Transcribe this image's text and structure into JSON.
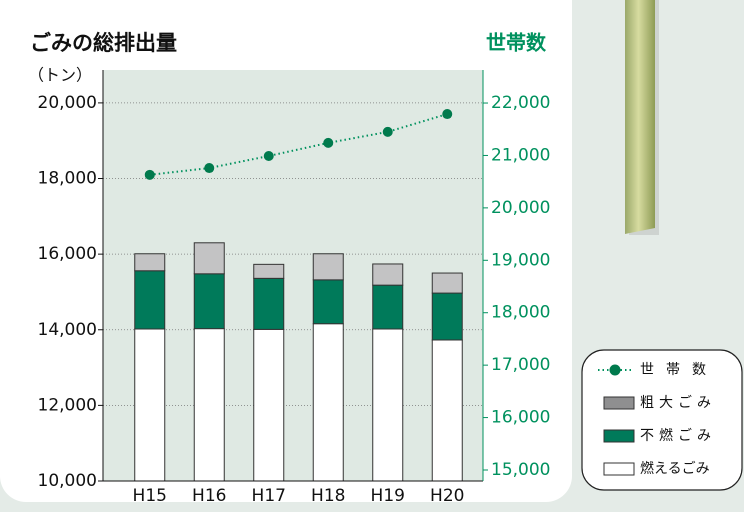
{
  "chart_data": {
    "type": "bar",
    "stacked": true,
    "title": "ごみの総排出量",
    "y_label": "（トン）",
    "y2_label": "世帯数",
    "categories": [
      "H15",
      "H16",
      "H17",
      "H18",
      "H19",
      "H20"
    ],
    "series": [
      {
        "name": "燃えるごみ",
        "color": "#ffffff",
        "values": [
          14020,
          14030,
          14010,
          14160,
          14020,
          13730
        ]
      },
      {
        "name": "不燃ごみ",
        "color": "#007a5a",
        "values": [
          1540,
          1450,
          1350,
          1160,
          1160,
          1240
        ]
      },
      {
        "name": "粗大ごみ",
        "color": "#c3c3c4",
        "values": [
          450,
          820,
          370,
          690,
          560,
          530
        ]
      },
      {
        "name": "世帯数",
        "color": "#00915e",
        "type": "line",
        "axis": "y2",
        "values": [
          20630,
          20760,
          20990,
          21240,
          21450,
          21790
        ]
      }
    ],
    "ylim": [
      10000,
      20870
    ],
    "yticks": [
      {
        "value": 10000,
        "label": "10,000"
      },
      {
        "value": 12000,
        "label": "12,000"
      },
      {
        "value": 14000,
        "label": "14,000"
      },
      {
        "value": 16000,
        "label": "16,000"
      },
      {
        "value": 18000,
        "label": "18,000"
      },
      {
        "value": 20000,
        "label": "20,000"
      }
    ],
    "y2lim": [
      14790,
      22630
    ],
    "y2ticks": [
      {
        "value": 15000,
        "label": "15,000"
      },
      {
        "value": 16000,
        "label": "16,000"
      },
      {
        "value": 17000,
        "label": "17,000"
      },
      {
        "value": 18000,
        "label": "18,000"
      },
      {
        "value": 19000,
        "label": "19,000"
      },
      {
        "value": 20000,
        "label": "20,000"
      },
      {
        "value": 21000,
        "label": "21,000"
      },
      {
        "value": 22000,
        "label": "22,000"
      }
    ],
    "grid": true
  }
}
